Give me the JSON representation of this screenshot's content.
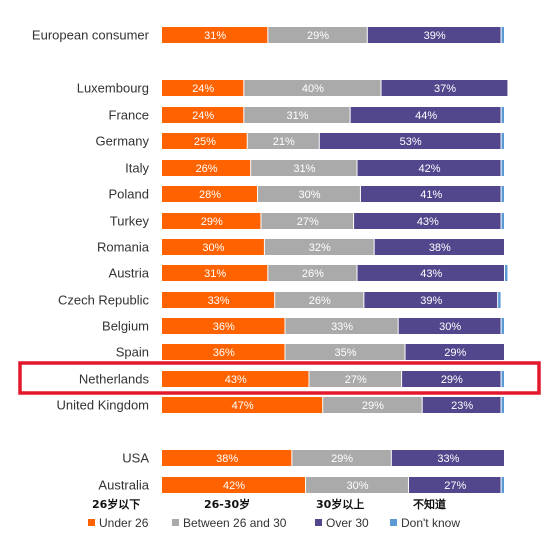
{
  "chart_data": {
    "type": "bar",
    "orientation": "horizontal",
    "stacked": true,
    "xlim": [
      0,
      100
    ],
    "categories": [
      "European consumer",
      "Luxembourg",
      "France",
      "Germany",
      "Italy",
      "Poland",
      "Turkey",
      "Romania",
      "Austria",
      "Czech Republic",
      "Belgium",
      "Spain",
      "Netherlands",
      "United Kingdom",
      "USA",
      "Australia"
    ],
    "series": [
      {
        "name": "Under 26",
        "color": "#FF6200",
        "values": [
          31,
          24,
          24,
          25,
          26,
          28,
          29,
          30,
          31,
          33,
          36,
          36,
          43,
          47,
          38,
          42
        ]
      },
      {
        "name": "Between 26 and 30",
        "color": "#AAAAAA",
        "values": [
          29,
          40,
          31,
          21,
          31,
          30,
          27,
          32,
          26,
          26,
          33,
          35,
          27,
          29,
          29,
          30
        ]
      },
      {
        "name": "Over 30",
        "color": "#52468C",
        "values": [
          39,
          37,
          44,
          53,
          42,
          41,
          43,
          38,
          43,
          39,
          30,
          29,
          29,
          23,
          33,
          27
        ]
      },
      {
        "name": "Don't know",
        "color": "#5B9BD5",
        "values": [
          1,
          0,
          1,
          1,
          1,
          1,
          1,
          0,
          1,
          1,
          1,
          0,
          1,
          1,
          0,
          1
        ]
      }
    ],
    "value_labels": [
      [
        "31%",
        "29%",
        "39%"
      ],
      [
        "24%",
        "40%",
        "37%"
      ],
      [
        "24%",
        "31%",
        "44%"
      ],
      [
        "25%",
        "21%",
        "53%"
      ],
      [
        "26%",
        "31%",
        "42%"
      ],
      [
        "28%",
        "30%",
        "41%"
      ],
      [
        "29%",
        "27%",
        "43%"
      ],
      [
        "30%",
        "32%",
        "38%"
      ],
      [
        "31%",
        "26%",
        "43%"
      ],
      [
        "33%",
        "26%",
        "39%"
      ],
      [
        "36%",
        "33%",
        "30%"
      ],
      [
        "36%",
        "35%",
        "29%"
      ],
      [
        "43%",
        "27%",
        "29%"
      ],
      [
        "47%",
        "29%",
        "23%"
      ],
      [
        "38%",
        "29%",
        "33%"
      ],
      [
        "42%",
        "30%",
        "27%"
      ]
    ],
    "highlight": {
      "category": "Netherlands",
      "color": "#E3182D"
    },
    "legend": {
      "position": "bottom",
      "items": [
        "Under 26",
        "Between 26 and 30",
        "Over 30",
        "Don't know"
      ],
      "annotations": [
        "26岁以下",
        "26-30岁",
        "30岁以上",
        "不知道"
      ]
    }
  }
}
